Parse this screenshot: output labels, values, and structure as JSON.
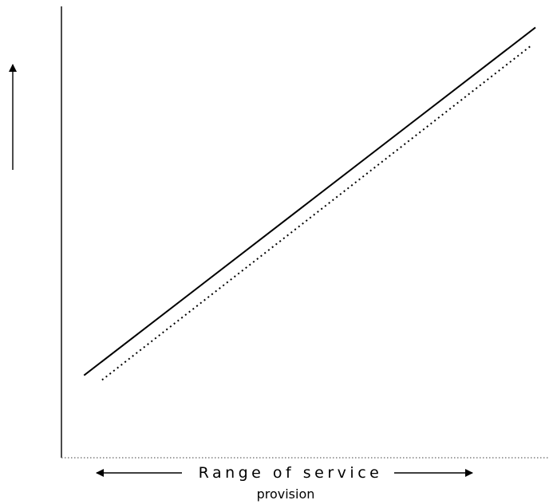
{
  "chart_data": {
    "type": "line",
    "title": "",
    "xlabel": {
      "line1": "Range of service",
      "line2": "provision"
    },
    "ylabel": "",
    "grid": false,
    "x": [
      0,
      1
    ],
    "series": [
      {
        "style": "solid",
        "values": [
          0.18,
          0.94
        ]
      },
      {
        "style": "dotted",
        "values": [
          0.17,
          0.9
        ]
      }
    ],
    "xlim": [
      -0.05,
      1.03
    ],
    "ylim": [
      0,
      1
    ]
  },
  "colors": {
    "line": "#000000",
    "axis": "#000000",
    "baseline": "#666666"
  }
}
